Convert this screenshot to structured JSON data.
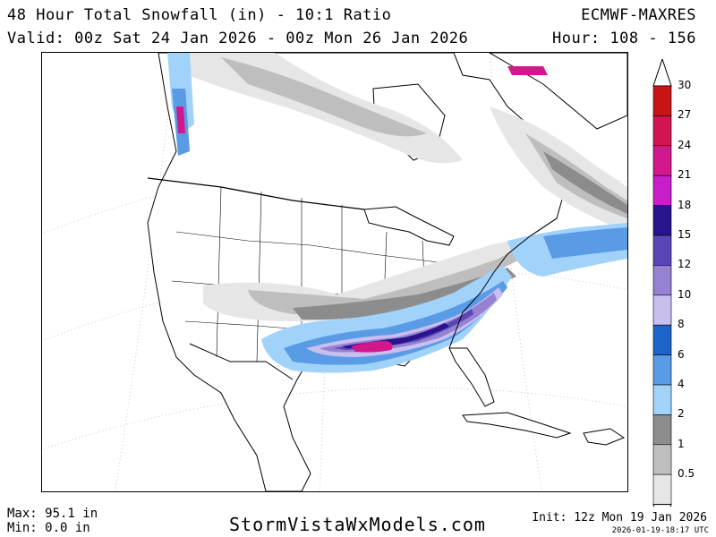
{
  "header": {
    "title": "48 Hour Total Snowfall (in) - 10:1 Ratio",
    "valid": "Valid: 00z Sat 24 Jan 2026 - 00z Mon 26 Jan 2026",
    "model": "ECMWF-MAXRES",
    "hours": "Hour: 108 - 156"
  },
  "legend": {
    "unit": "in",
    "levels": [
      {
        "label": "30",
        "color": "#c81414"
      },
      {
        "label": "27",
        "color": "#d21450"
      },
      {
        "label": "24",
        "color": "#d2188c"
      },
      {
        "label": "21",
        "color": "#c81ec8"
      },
      {
        "label": "18",
        "color": "#28148c"
      },
      {
        "label": "15",
        "color": "#5a46b4"
      },
      {
        "label": "12",
        "color": "#9682d2"
      },
      {
        "label": "10",
        "color": "#c8bef0"
      },
      {
        "label": "8",
        "color": "#1e64c8"
      },
      {
        "label": "6",
        "color": "#5a9be6"
      },
      {
        "label": "4",
        "color": "#a0d2fa"
      },
      {
        "label": "2",
        "color": "#8c8c8c"
      },
      {
        "label": "1",
        "color": "#bebebe"
      },
      {
        "label": "0.5",
        "color": "#e6e6e6"
      }
    ]
  },
  "footer": {
    "max": "Max: 95.1 in",
    "min": "Min: 0.0 in",
    "site": "StormVistaWxModels.com",
    "init": "Init: 12z Mon 19 Jan 2026",
    "stamp": "2026-01-19-18:17 UTC"
  }
}
